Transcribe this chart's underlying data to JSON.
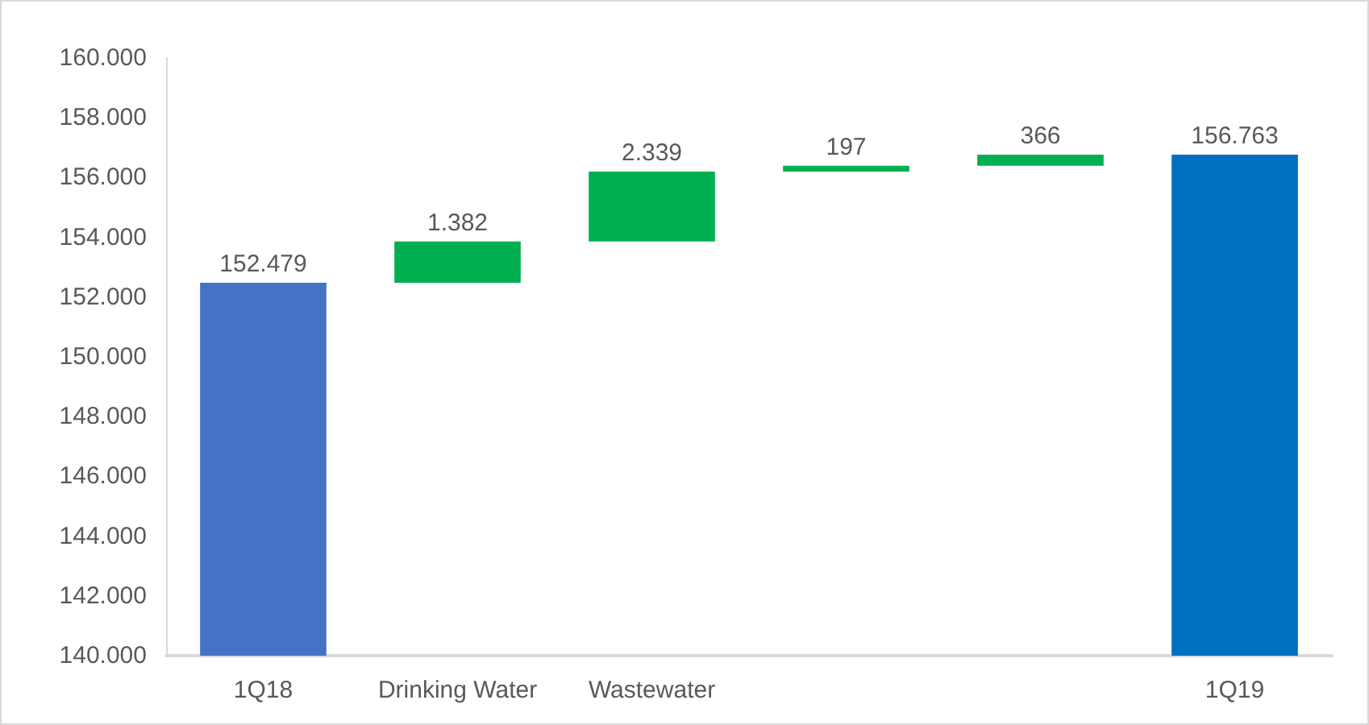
{
  "chart_data": {
    "type": "bar",
    "categories": [
      "1Q18",
      "Drinking Water",
      "Wastewater",
      null,
      null,
      "1Q19"
    ],
    "values": [
      152479,
      1382,
      2339,
      197,
      366,
      156763
    ],
    "base": [
      null,
      152479,
      153861,
      156200,
      156397,
      null
    ],
    "colors": [
      "#4472c4",
      "#00b050",
      "#00b050",
      "#00b050",
      "#00b050",
      "#0070c0"
    ],
    "value_labels": [
      "152.479",
      "1.382",
      "2.339",
      "197",
      "366",
      "156.763"
    ],
    "ylim": [
      140000,
      160000
    ],
    "yticks": [
      {
        "value": 140000,
        "label": "140.000"
      },
      {
        "value": 142000,
        "label": "142.000"
      },
      {
        "value": 144000,
        "label": "144.000"
      },
      {
        "value": 146000,
        "label": "146.000"
      },
      {
        "value": 148000,
        "label": "148.000"
      },
      {
        "value": 150000,
        "label": "150.000"
      },
      {
        "value": 152000,
        "label": "152.000"
      },
      {
        "value": 154000,
        "label": "154.000"
      },
      {
        "value": 156000,
        "label": "156.000"
      },
      {
        "value": 158000,
        "label": "158.000"
      },
      {
        "value": 160000,
        "label": "160.000"
      }
    ],
    "grid": false
  }
}
